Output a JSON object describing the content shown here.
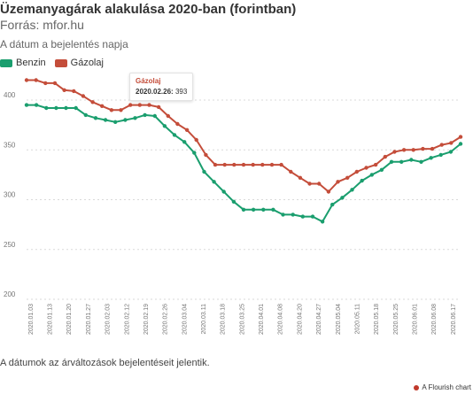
{
  "chart_data": {
    "type": "line",
    "title": "Üzemanyagárak alakulása 2020-ban (forintban)",
    "subtitle": "Forrás: mfor.hu",
    "xlabel": "A dátum a bejelentés napja",
    "ylabel": "",
    "ylim": [
      200,
      420
    ],
    "yticks": [
      200,
      250,
      300,
      350,
      400
    ],
    "grid": true,
    "legend": "top-left",
    "x_tick_labels": [
      "2020.01.03",
      "2020.01.13",
      "2020.01.20",
      "2020.01.27",
      "2020.02.03",
      "2020.02.12",
      "2020.02.19",
      "2020.02.26",
      "2020.03.04",
      "2020.03.11",
      "2020.03.18",
      "2020.03.25",
      "2020.04.01",
      "2020.04.08",
      "2020.04.20",
      "2020.04.27",
      "2020.05.04",
      "2020.05.11",
      "2020.05.18",
      "2020.05.25",
      "2020.06.01",
      "2020.06.08",
      "2020.06.17"
    ],
    "series": [
      {
        "name": "Benzin",
        "color": "#1a9e6e",
        "values": [
          395,
          395,
          392,
          392,
          392,
          392,
          385,
          382,
          380,
          378,
          380,
          382,
          385,
          384,
          374,
          365,
          358,
          347,
          328,
          318,
          308,
          298,
          290,
          290,
          290,
          290,
          285,
          285,
          283,
          283,
          278,
          295,
          302,
          310,
          319,
          325,
          330,
          338,
          338,
          340,
          338,
          342,
          345,
          348,
          356
        ]
      },
      {
        "name": "Gázolaj",
        "color": "#c44d3a",
        "values": [
          420,
          420,
          417,
          417,
          410,
          409,
          404,
          398,
          394,
          390,
          390,
          395,
          395,
          395,
          393,
          384,
          376,
          370,
          360,
          345,
          335,
          335,
          335,
          335,
          335,
          335,
          335,
          335,
          328,
          322,
          316,
          316,
          308,
          318,
          322,
          328,
          332,
          335,
          343,
          348,
          350,
          350,
          351,
          351,
          355,
          357,
          363
        ]
      }
    ],
    "tooltip": {
      "series": "Gázolaj",
      "date": "2020.02.26:",
      "value": 393
    },
    "footnote": "A dátumok az árváltozások bejelentéseit jelentik.",
    "credit": "A Flourish chart"
  }
}
